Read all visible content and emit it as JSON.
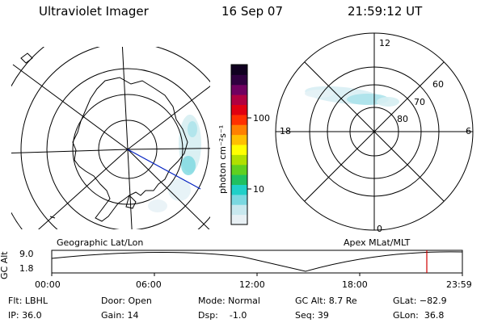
{
  "header": {
    "instrument": "Ultraviolet Imager",
    "date": "16 Sep 07",
    "time": "21:59:12 UT"
  },
  "geo_panel": {
    "label": "Geographic Lat/Lon"
  },
  "mag_panel": {
    "label": "Apex MLat/MLT",
    "mlt_labels": [
      "12",
      "18",
      "6",
      "0"
    ],
    "lat_labels": [
      "60",
      "70",
      "80"
    ]
  },
  "colorbar": {
    "unit": "photon cm⁻²s⁻¹",
    "ticks": [
      "100",
      "10"
    ],
    "colors": [
      "#e8f0f4",
      "#c8e8ee",
      "#7ad8e0",
      "#20d0c8",
      "#20c060",
      "#60d020",
      "#b0e000",
      "#ffff00",
      "#ffc000",
      "#ff8000",
      "#ff3000",
      "#e00010",
      "#b00040",
      "#700060",
      "#300040",
      "#100020"
    ]
  },
  "orbit_plot": {
    "ylabel": "GC Alt",
    "yticks": [
      "9.0",
      "1.8"
    ],
    "xticks": [
      "00:00",
      "06:00",
      "12:00",
      "18:00",
      "23:59"
    ],
    "marker_color": "#d00000"
  },
  "info": {
    "flt": "Flt: LBHL",
    "ip": "IP: 36.0",
    "door": "Door: Open",
    "gain": "Gain: 14",
    "mode": "Mode: Normal",
    "dsp": "Dsp:    -1.0",
    "gc_alt": "GC Alt: 8.7 Re",
    "seq": "Seq: 39",
    "glat": "GLat: −82.9",
    "glon": "GLon:  36.8"
  }
}
